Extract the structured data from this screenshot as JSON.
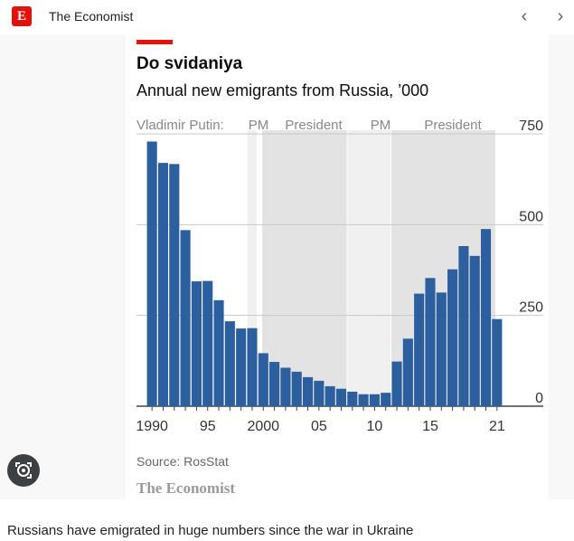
{
  "header": {
    "logo_letter": "E",
    "site_name": "The Economist",
    "prev_icon": "chevron-left-icon",
    "next_icon": "chevron-right-icon"
  },
  "article": {
    "title": "Do svidaniya",
    "subtitle": "Annual new emigrants from Russia, ’000",
    "source": "Source: RosStat",
    "brand": "The Economist"
  },
  "lens_icon": "lens-search-icon",
  "caption": "Russians have emigrated in huge numbers since the war in Ukraine",
  "colors": {
    "accent": "#e3120b",
    "bar": "#2b5f9e",
    "shade": "#e3e3e3"
  },
  "chart_data": {
    "type": "bar",
    "title": "Do svidaniya",
    "subtitle": "Annual new emigrants from Russia, ’000",
    "x": [
      1990,
      1991,
      1992,
      1993,
      1994,
      1995,
      1996,
      1997,
      1998,
      1999,
      2000,
      2001,
      2002,
      2003,
      2004,
      2005,
      2006,
      2007,
      2008,
      2009,
      2010,
      2011,
      2012,
      2013,
      2014,
      2015,
      2016,
      2017,
      2018,
      2019,
      2020,
      2021
    ],
    "values": [
      729,
      670,
      667,
      485,
      344,
      345,
      292,
      234,
      214,
      215,
      146,
      122,
      106,
      95,
      80,
      70,
      55,
      48,
      40,
      33,
      33,
      37,
      123,
      186,
      310,
      353,
      313,
      377,
      441,
      414,
      488,
      240
    ],
    "ylim": [
      0,
      750
    ],
    "yticks": [
      0,
      250,
      500,
      750
    ],
    "xticks": [
      {
        "year": 1990,
        "label": "1990"
      },
      {
        "year": 1995,
        "label": "95"
      },
      {
        "year": 2000,
        "label": "2000"
      },
      {
        "year": 2005,
        "label": "05"
      },
      {
        "year": 2010,
        "label": "10"
      },
      {
        "year": 2015,
        "label": "15"
      },
      {
        "year": 2021,
        "label": "21"
      }
    ],
    "bands_label": "Vladimir Putin:",
    "bands": [
      {
        "label": "PM",
        "start": 1999,
        "end": 2000
      },
      {
        "label": "President",
        "start": 2000,
        "end": 2008
      },
      {
        "label": "PM",
        "start": 2008,
        "end": 2012
      },
      {
        "label": "President",
        "start": 2012,
        "end": 2021
      }
    ],
    "shaded_bands": [
      "President",
      "President"
    ],
    "grid": true,
    "axis_position": "right",
    "source": "Source: RosStat"
  }
}
